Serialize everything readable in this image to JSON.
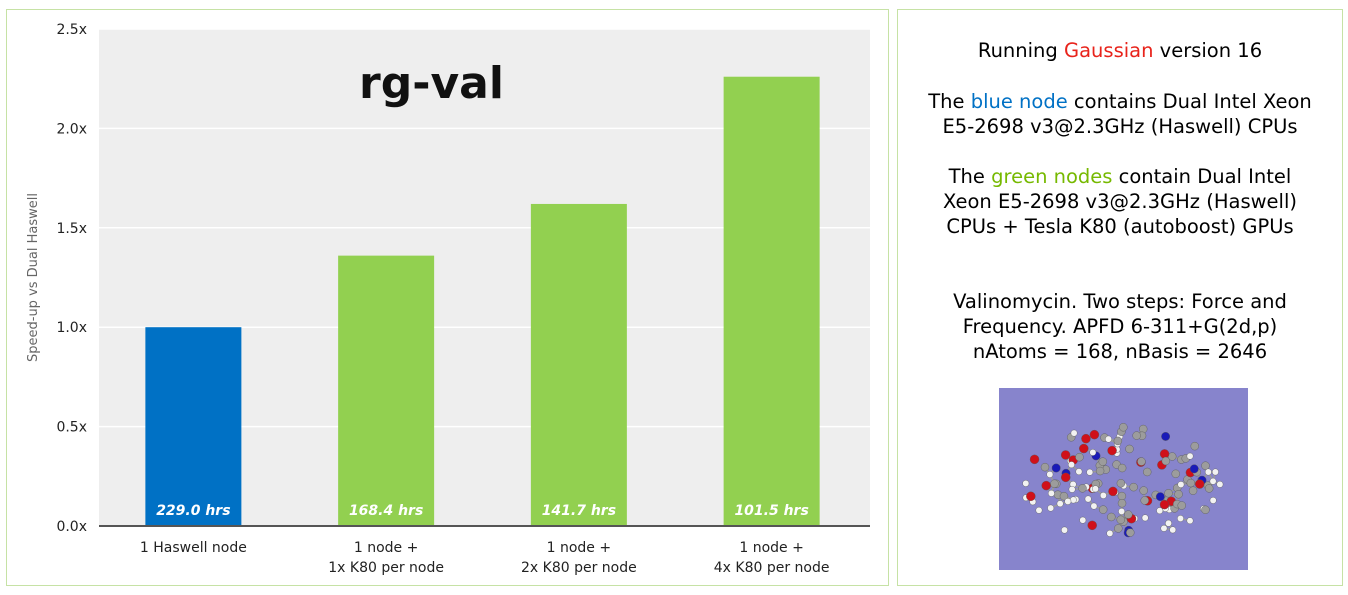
{
  "chart_data": {
    "type": "bar",
    "title": "rg-val",
    "ylabel": "Speed-up vs Dual Haswell",
    "xlabel": "",
    "ylim": [
      0,
      2.5
    ],
    "yticks": [
      "0.0x",
      "0.5x",
      "1.0x",
      "1.5x",
      "2.0x",
      "2.5x"
    ],
    "ytick_values": [
      0,
      0.5,
      1.0,
      1.5,
      2.0,
      2.5
    ],
    "grid": "horizontal",
    "categories": [
      [
        "1 Haswell node"
      ],
      [
        "1 node +",
        "1x K80 per node"
      ],
      [
        "1 node +",
        "2x K80 per node"
      ],
      [
        "1 node +",
        "4x K80 per node"
      ]
    ],
    "values": [
      1.0,
      1.36,
      1.62,
      2.26
    ],
    "bar_labels": [
      "229.0 hrs",
      "168.4 hrs",
      "141.7 hrs",
      "101.5 hrs"
    ],
    "bar_colors": [
      "#0071c5",
      "#92d050",
      "#92d050",
      "#92d050"
    ]
  },
  "info": {
    "line1": {
      "pre": "Running ",
      "highlight": "Gaussian",
      "post": " version 16",
      "color": "#e8231b"
    },
    "blue_node": {
      "pre": "The ",
      "highlight": "blue node",
      "post": " contains Dual Intel Xeon",
      "line2": "E5-2698 v3@2.3GHz (Haswell) CPUs",
      "color": "#0071c5"
    },
    "green_nodes": {
      "pre": "The ",
      "highlight": "green nodes",
      "post": " contain Dual Intel",
      "line2": "Xeon E5-2698 v3@2.3GHz (Haswell)",
      "line3": "CPUs + Tesla K80 (autoboost) GPUs",
      "color": "#76b900"
    },
    "description": {
      "line1": "Valinomycin. Two steps: Force and",
      "line2": "Frequency. APFD 6-311+G(2d,p)",
      "line3": "nAtoms = 168, nBasis = 2646"
    },
    "molecule_image": {
      "background": "#8784cc"
    }
  }
}
